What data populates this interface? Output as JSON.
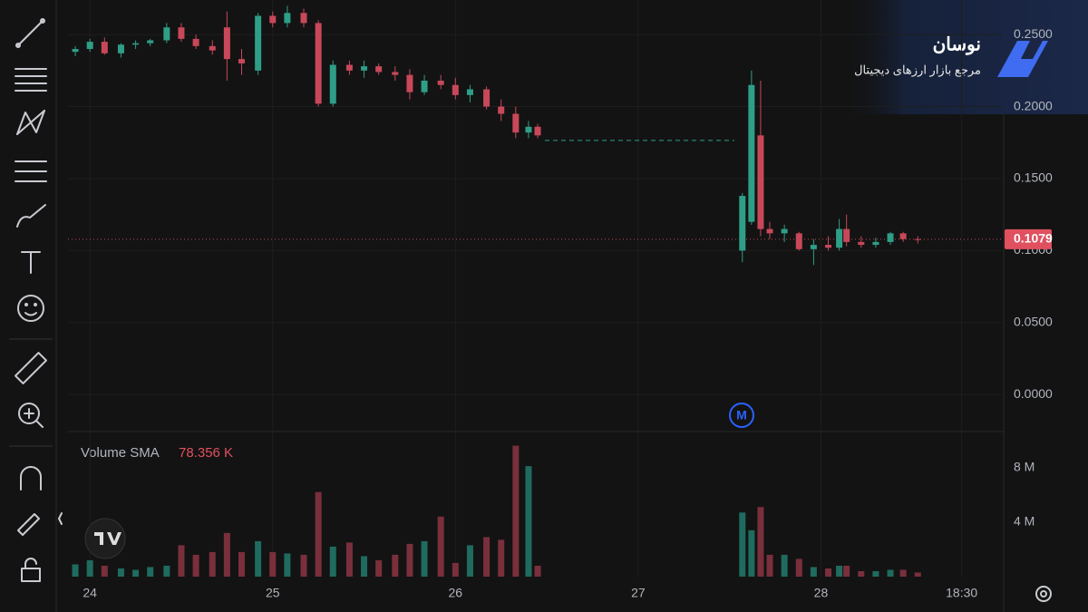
{
  "branding": {
    "name": "نوسان",
    "tagline": "مرجع بازار ارزهای دیجیتال"
  },
  "chart_data": [
    {
      "type": "candlestick",
      "up_color": "#2f9e87",
      "down_color": "#c8485a",
      "grid": true,
      "xlim": [
        23.88,
        28.99
      ],
      "ylim": [
        -0.025,
        0.274
      ],
      "xticks": [
        {
          "value": 24,
          "label": "24"
        },
        {
          "value": 25,
          "label": "25"
        },
        {
          "value": 26,
          "label": "26"
        },
        {
          "value": 27,
          "label": "27"
        },
        {
          "value": 28,
          "label": "28"
        },
        {
          "value": 28.77,
          "label": "18:30"
        }
      ],
      "yticks": [
        {
          "value": 0,
          "label": "0.0000"
        },
        {
          "value": 0.05,
          "label": "0.0500"
        },
        {
          "value": 0.1,
          "label": "0.1000"
        },
        {
          "value": 0.15,
          "label": "0.1500"
        },
        {
          "value": 0.2,
          "label": "0.2000"
        },
        {
          "value": 0.25,
          "label": "0.2500"
        }
      ],
      "last_price": 0.1079,
      "reference_line": 0.1765,
      "marker_label": "M",
      "x": [
        23.92,
        24.0,
        24.08,
        24.17,
        24.25,
        24.33,
        24.42,
        24.5,
        24.58,
        24.67,
        24.75,
        24.83,
        24.92,
        25.0,
        25.08,
        25.17,
        25.25,
        25.33,
        25.42,
        25.5,
        25.58,
        25.67,
        25.75,
        25.83,
        25.92,
        26.0,
        26.08,
        26.17,
        26.25,
        26.33,
        26.4,
        26.45,
        27.57,
        27.62,
        27.67,
        27.72,
        27.8,
        27.88,
        27.96,
        28.04,
        28.1,
        28.14,
        28.22,
        28.3,
        28.38,
        28.45,
        28.53
      ],
      "open": [
        0.238,
        0.24,
        0.245,
        0.237,
        0.243,
        0.244,
        0.246,
        0.255,
        0.247,
        0.242,
        0.255,
        0.233,
        0.225,
        0.263,
        0.258,
        0.265,
        0.258,
        0.202,
        0.229,
        0.225,
        0.228,
        0.224,
        0.222,
        0.21,
        0.218,
        0.215,
        0.208,
        0.212,
        0.2,
        0.195,
        0.182,
        0.186,
        0.1,
        0.12,
        0.18,
        0.115,
        0.112,
        0.112,
        0.101,
        0.104,
        0.102,
        0.115,
        0.106,
        0.104,
        0.106,
        0.112,
        0.108
      ],
      "high": [
        0.242,
        0.247,
        0.248,
        0.244,
        0.246,
        0.247,
        0.258,
        0.258,
        0.25,
        0.246,
        0.266,
        0.24,
        0.265,
        0.266,
        0.27,
        0.268,
        0.26,
        0.232,
        0.232,
        0.232,
        0.23,
        0.228,
        0.226,
        0.222,
        0.222,
        0.22,
        0.215,
        0.214,
        0.205,
        0.2,
        0.19,
        0.188,
        0.14,
        0.225,
        0.218,
        0.12,
        0.118,
        0.113,
        0.108,
        0.11,
        0.122,
        0.125,
        0.11,
        0.109,
        0.113,
        0.113,
        0.11
      ],
      "low": [
        0.235,
        0.238,
        0.236,
        0.234,
        0.24,
        0.242,
        0.244,
        0.245,
        0.24,
        0.236,
        0.218,
        0.222,
        0.222,
        0.255,
        0.255,
        0.255,
        0.2,
        0.2,
        0.222,
        0.22,
        0.222,
        0.218,
        0.205,
        0.208,
        0.212,
        0.205,
        0.203,
        0.198,
        0.19,
        0.178,
        0.178,
        0.178,
        0.092,
        0.118,
        0.11,
        0.108,
        0.106,
        0.1,
        0.09,
        0.1,
        0.1,
        0.103,
        0.102,
        0.102,
        0.104,
        0.106,
        0.105
      ],
      "close": [
        0.24,
        0.245,
        0.237,
        0.243,
        0.244,
        0.246,
        0.255,
        0.247,
        0.242,
        0.239,
        0.233,
        0.23,
        0.263,
        0.258,
        0.265,
        0.258,
        0.202,
        0.229,
        0.225,
        0.228,
        0.224,
        0.222,
        0.21,
        0.218,
        0.215,
        0.208,
        0.212,
        0.2,
        0.195,
        0.182,
        0.186,
        0.18,
        0.138,
        0.215,
        0.115,
        0.112,
        0.115,
        0.101,
        0.104,
        0.102,
        0.115,
        0.106,
        0.104,
        0.106,
        0.112,
        0.108,
        0.1079
      ]
    },
    {
      "type": "bar",
      "title": "Volume SMA",
      "sma": {
        "value": 78356,
        "label": "78.356 K"
      },
      "up_color": "#1f6b5f",
      "down_color": "#7a2f3c",
      "ylim": [
        0,
        10500000
      ],
      "yticks": [
        {
          "value": 4000000,
          "label": "4 M"
        },
        {
          "value": 8000000,
          "label": "8 M"
        }
      ],
      "values": [
        900000,
        1200000,
        800000,
        600000,
        500000,
        700000,
        800000,
        2300000,
        1600000,
        1800000,
        3200000,
        1800000,
        2600000,
        1800000,
        1700000,
        1600000,
        6200000,
        2200000,
        2500000,
        1500000,
        1200000,
        1600000,
        2400000,
        2600000,
        4400000,
        1000000,
        2300000,
        2900000,
        2700000,
        9600000,
        8100000,
        800000,
        4700000,
        3400000,
        5100000,
        1600000,
        1600000,
        1300000,
        700000,
        600000,
        800000,
        800000,
        400000,
        400000,
        500000,
        500000,
        300000
      ]
    }
  ]
}
